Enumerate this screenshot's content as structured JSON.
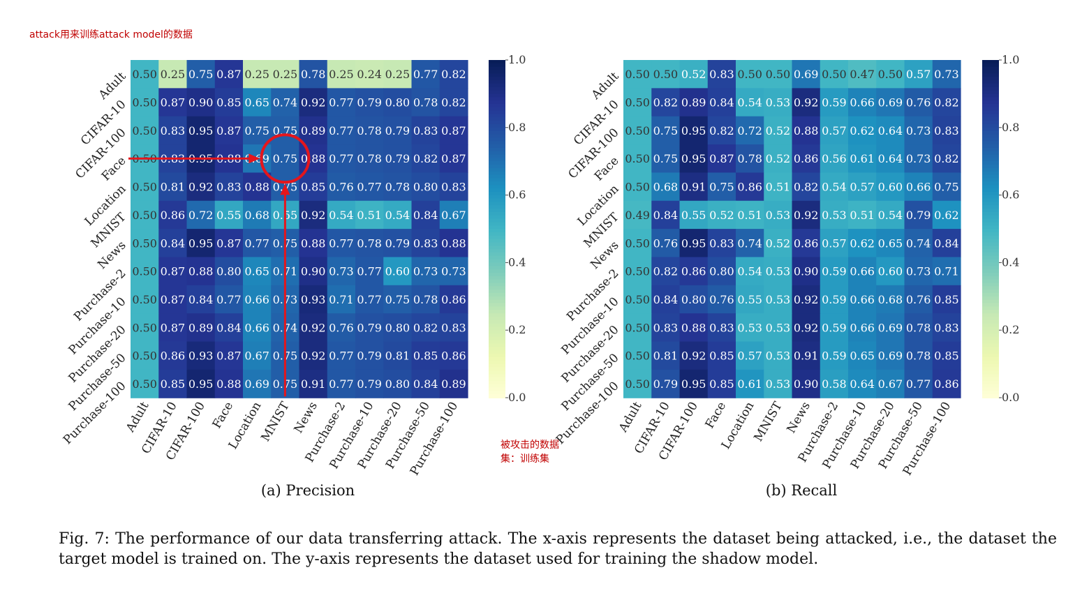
{
  "annotations": {
    "top_note": "attack用来训练attack model的数据",
    "side_note": "被攻击的数据集：训练集"
  },
  "figure": {
    "caption": "Fig. 7: The performance of our data transferring attack. The x-axis represents the dataset being attacked, i.e., the dataset the target model is trained on. The y-axis represents the dataset used for training the shadow model.",
    "colors": {
      "highlight": "#e5161c"
    }
  },
  "chart_data": [
    {
      "type": "heatmap",
      "title": "(a) Precision",
      "colormap": "YlGnBu",
      "vmin": 0.0,
      "vmax": 1.0,
      "colorbar_ticks": [
        "0.0",
        "0.2",
        "0.4",
        "0.6",
        "0.8",
        "1.0"
      ],
      "x_labels": [
        "Adult",
        "CIFAR-10",
        "CIFAR-100",
        "Face",
        "Location",
        "MNIST",
        "News",
        "Purchase-2",
        "Purchase-10",
        "Purchase-20",
        "Purchase-50",
        "Purchase-100"
      ],
      "y_labels": [
        "Adult",
        "CIFAR-10",
        "CIFAR-100",
        "Face",
        "Location",
        "MNIST",
        "News",
        "Purchase-2",
        "Purchase-10",
        "Purchase-20",
        "Purchase-50",
        "Purchase-100"
      ],
      "values": [
        [
          0.5,
          0.25,
          0.75,
          0.87,
          0.25,
          0.25,
          0.78,
          0.25,
          0.24,
          0.25,
          0.77,
          0.82
        ],
        [
          0.5,
          0.87,
          0.9,
          0.85,
          0.65,
          0.74,
          0.92,
          0.77,
          0.79,
          0.8,
          0.78,
          0.82
        ],
        [
          0.5,
          0.83,
          0.95,
          0.87,
          0.75,
          0.75,
          0.89,
          0.77,
          0.78,
          0.79,
          0.83,
          0.87
        ],
        [
          0.5,
          0.83,
          0.95,
          0.88,
          0.69,
          0.75,
          0.88,
          0.77,
          0.78,
          0.79,
          0.82,
          0.87
        ],
        [
          0.5,
          0.81,
          0.92,
          0.83,
          0.88,
          0.75,
          0.85,
          0.76,
          0.77,
          0.78,
          0.8,
          0.83
        ],
        [
          0.5,
          0.86,
          0.72,
          0.55,
          0.68,
          0.55,
          0.92,
          0.54,
          0.51,
          0.54,
          0.84,
          0.67
        ],
        [
          0.5,
          0.84,
          0.95,
          0.87,
          0.77,
          0.75,
          0.88,
          0.77,
          0.78,
          0.79,
          0.83,
          0.88
        ],
        [
          0.5,
          0.87,
          0.88,
          0.8,
          0.65,
          0.71,
          0.9,
          0.73,
          0.77,
          0.6,
          0.73,
          0.73
        ],
        [
          0.5,
          0.87,
          0.84,
          0.77,
          0.66,
          0.73,
          0.93,
          0.71,
          0.77,
          0.75,
          0.78,
          0.86
        ],
        [
          0.5,
          0.87,
          0.89,
          0.84,
          0.66,
          0.74,
          0.92,
          0.76,
          0.79,
          0.8,
          0.82,
          0.83
        ],
        [
          0.5,
          0.86,
          0.93,
          0.87,
          0.67,
          0.75,
          0.92,
          0.77,
          0.79,
          0.81,
          0.85,
          0.86
        ],
        [
          0.5,
          0.85,
          0.95,
          0.88,
          0.69,
          0.75,
          0.91,
          0.77,
          0.79,
          0.8,
          0.84,
          0.89
        ]
      ],
      "highlight": {
        "row": "Face",
        "col": "MNIST"
      }
    },
    {
      "type": "heatmap",
      "title": "(b) Recall",
      "colormap": "YlGnBu",
      "vmin": 0.0,
      "vmax": 1.0,
      "colorbar_ticks": [
        "0.0",
        "0.2",
        "0.4",
        "0.6",
        "0.8",
        "1.0"
      ],
      "x_labels": [
        "Adult",
        "CIFAR-10",
        "CIFAR-100",
        "Face",
        "Location",
        "MNIST",
        "News",
        "Purchase-2",
        "Purchase-10",
        "Purchase-20",
        "Purchase-50",
        "Purchase-100"
      ],
      "y_labels": [
        "Adult",
        "CIFAR-10",
        "CIFAR-100",
        "Face",
        "Location",
        "MNIST",
        "News",
        "Purchase-2",
        "Purchase-10",
        "Purchase-20",
        "Purchase-50",
        "Purchase-100"
      ],
      "values": [
        [
          0.5,
          0.5,
          0.52,
          0.83,
          0.5,
          0.5,
          0.69,
          0.5,
          0.47,
          0.5,
          0.57,
          0.73
        ],
        [
          0.5,
          0.82,
          0.89,
          0.84,
          0.54,
          0.53,
          0.92,
          0.59,
          0.66,
          0.69,
          0.76,
          0.82
        ],
        [
          0.5,
          0.75,
          0.95,
          0.82,
          0.72,
          0.52,
          0.88,
          0.57,
          0.62,
          0.64,
          0.73,
          0.83
        ],
        [
          0.5,
          0.75,
          0.95,
          0.87,
          0.78,
          0.52,
          0.86,
          0.56,
          0.61,
          0.64,
          0.73,
          0.82
        ],
        [
          0.5,
          0.68,
          0.91,
          0.75,
          0.86,
          0.51,
          0.82,
          0.54,
          0.57,
          0.6,
          0.66,
          0.75
        ],
        [
          0.49,
          0.84,
          0.55,
          0.52,
          0.51,
          0.53,
          0.92,
          0.53,
          0.51,
          0.54,
          0.79,
          0.62
        ],
        [
          0.5,
          0.76,
          0.95,
          0.83,
          0.74,
          0.52,
          0.86,
          0.57,
          0.62,
          0.65,
          0.74,
          0.84
        ],
        [
          0.5,
          0.82,
          0.86,
          0.8,
          0.54,
          0.53,
          0.9,
          0.59,
          0.66,
          0.6,
          0.73,
          0.71
        ],
        [
          0.5,
          0.84,
          0.8,
          0.76,
          0.55,
          0.53,
          0.92,
          0.59,
          0.66,
          0.68,
          0.76,
          0.85
        ],
        [
          0.5,
          0.83,
          0.88,
          0.83,
          0.53,
          0.53,
          0.92,
          0.59,
          0.66,
          0.69,
          0.78,
          0.83
        ],
        [
          0.5,
          0.81,
          0.92,
          0.85,
          0.57,
          0.53,
          0.91,
          0.59,
          0.65,
          0.69,
          0.78,
          0.85
        ],
        [
          0.5,
          0.79,
          0.95,
          0.85,
          0.61,
          0.53,
          0.9,
          0.58,
          0.64,
          0.67,
          0.77,
          0.86
        ]
      ]
    }
  ]
}
